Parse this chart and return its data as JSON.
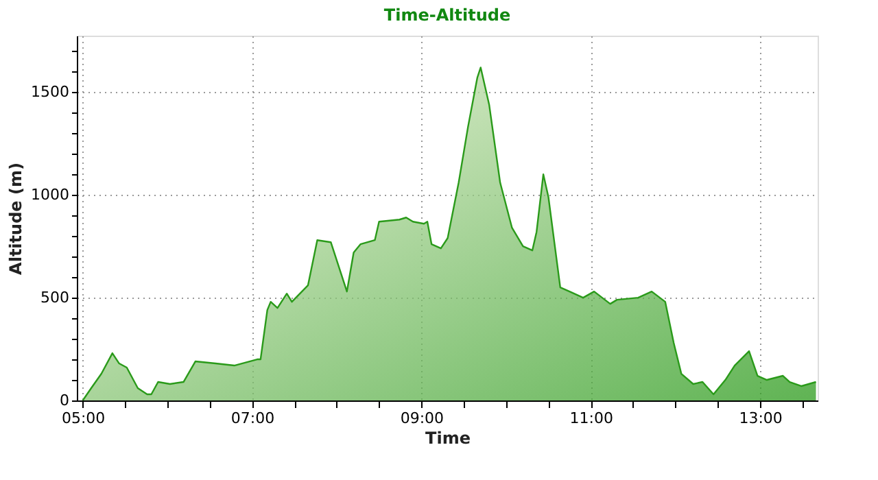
{
  "chart_data": {
    "type": "area",
    "title": "Time-Altitude",
    "xlabel": "Time",
    "ylabel": "Altitude (m)",
    "xlim": [
      4.93,
      13.68
    ],
    "xticks": [
      {
        "value": 5,
        "label": "05:00"
      },
      {
        "value": 5.5,
        "label": null
      },
      {
        "value": 6,
        "label": null
      },
      {
        "value": 6.5,
        "label": null
      },
      {
        "value": 7,
        "label": "07:00"
      },
      {
        "value": 7.5,
        "label": null
      },
      {
        "value": 8,
        "label": null
      },
      {
        "value": 8.5,
        "label": null
      },
      {
        "value": 9,
        "label": "09:00"
      },
      {
        "value": 9.5,
        "label": null
      },
      {
        "value": 10,
        "label": null
      },
      {
        "value": 10.5,
        "label": null
      },
      {
        "value": 11,
        "label": "11:00"
      },
      {
        "value": 11.5,
        "label": null
      },
      {
        "value": 12,
        "label": null
      },
      {
        "value": 12.5,
        "label": null
      },
      {
        "value": 13,
        "label": "13:00"
      },
      {
        "value": 13.5,
        "label": null
      }
    ],
    "ylim": [
      0,
      1775
    ],
    "yticks": [
      0,
      {
        "value": 100,
        "label": null
      },
      {
        "value": 200,
        "label": null
      },
      {
        "value": 300,
        "label": null
      },
      {
        "value": 400,
        "label": null
      },
      500,
      {
        "value": 600,
        "label": null
      },
      {
        "value": 700,
        "label": null
      },
      {
        "value": 800,
        "label": null
      },
      {
        "value": 900,
        "label": null
      },
      1000,
      {
        "value": 1100,
        "label": null
      },
      {
        "value": 1200,
        "label": null
      },
      {
        "value": 1300,
        "label": null
      },
      {
        "value": 1400,
        "label": null
      },
      1500,
      {
        "value": 1600,
        "label": null
      },
      {
        "value": 1700,
        "label": null
      }
    ],
    "grid": true,
    "x": [
      5.0,
      5.1,
      5.22,
      5.35,
      5.43,
      5.52,
      5.65,
      5.76,
      5.81,
      5.89,
      6.03,
      6.19,
      6.33,
      6.57,
      6.79,
      7.06,
      7.1,
      7.18,
      7.22,
      7.3,
      7.41,
      7.47,
      7.66,
      7.77,
      7.93,
      8.12,
      8.2,
      8.28,
      8.45,
      8.5,
      8.74,
      8.82,
      8.9,
      9.03,
      9.07,
      9.12,
      9.23,
      9.31,
      9.44,
      9.55,
      9.66,
      9.7,
      9.8,
      9.93,
      10.07,
      10.2,
      10.31,
      10.36,
      10.44,
      10.5,
      10.64,
      10.75,
      10.91,
      11.04,
      11.23,
      11.31,
      11.56,
      11.72,
      11.88,
      11.98,
      12.07,
      12.21,
      12.32,
      12.45,
      12.59,
      12.7,
      12.87,
      12.97,
      13.08,
      13.27,
      13.35,
      13.49,
      13.66
    ],
    "series": [
      {
        "color": "#2a9a1a",
        "values": [
          0,
          60,
          130,
          230,
          180,
          160,
          60,
          30,
          30,
          90,
          80,
          90,
          190,
          180,
          170,
          200,
          200,
          440,
          480,
          450,
          520,
          480,
          560,
          780,
          770,
          530,
          720,
          760,
          780,
          870,
          880,
          890,
          870,
          860,
          870,
          760,
          740,
          790,
          1060,
          1330,
          1570,
          1620,
          1440,
          1060,
          840,
          750,
          730,
          820,
          1100,
          990,
          550,
          530,
          500,
          530,
          470,
          490,
          500,
          530,
          480,
          280,
          130,
          80,
          90,
          30,
          100,
          170,
          240,
          120,
          100,
          120,
          90,
          70,
          90
        ]
      }
    ]
  }
}
